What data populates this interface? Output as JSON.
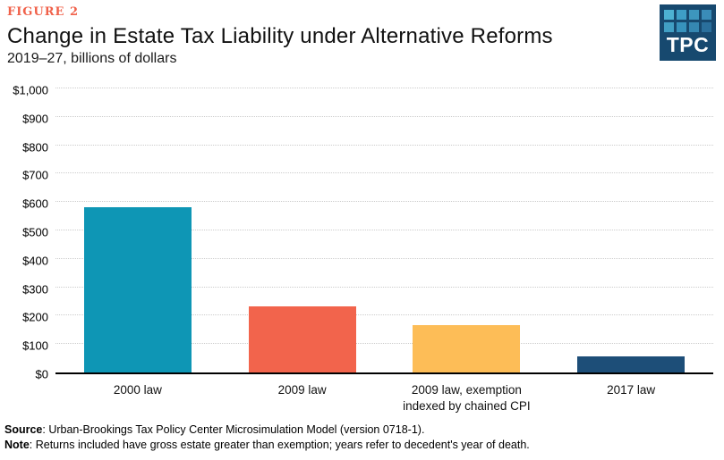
{
  "header": {
    "figure_label": "FIGURE 2",
    "title": "Change in Estate Tax Liability under Alternative Reforms",
    "subtitle": "2019–27, billions of dollars"
  },
  "logo": {
    "text": "TPC",
    "background": "#17496f",
    "square_colors": [
      "#4db1d2",
      "#3e9ec6",
      "#3d96be",
      "#3a8cb8",
      "#419fc4",
      "#3792bc",
      "#3587b2",
      "#2a6f9c"
    ]
  },
  "chart_data": {
    "type": "bar",
    "title": "Change in Estate Tax Liability under Alternative Reforms",
    "subtitle": "2019–27, billions of dollars",
    "categories": [
      "2000 law",
      "2009 law",
      "2009 law, exemption indexed by chained CPI",
      "2017 law"
    ],
    "values": [
      583,
      232,
      167,
      58
    ],
    "bar_colors": [
      "#0e96b5",
      "#f2644c",
      "#fdbd57",
      "#1d4e78"
    ],
    "xlabel": "",
    "ylabel": "billions of dollars",
    "ylim": [
      0,
      1000
    ],
    "ytick_step": 100,
    "ytick_labels": [
      "$0",
      "$100",
      "$200",
      "$300",
      "$400",
      "$500",
      "$600",
      "$700",
      "$800",
      "$900",
      "$1,000"
    ],
    "grid": "horizontal-dotted",
    "legend": "none"
  },
  "footer": {
    "source_label": "Source",
    "source_text": ": Urban-Brookings Tax Policy Center Microsimulation Model (version 0718-1).",
    "note_label": "Note",
    "note_text": ": Returns included have gross estate greater than exemption; years refer to decedent's year of death."
  },
  "colors": {
    "figure_label": "#f0614a",
    "gridline": "#cccccc",
    "axis": "#000000"
  }
}
